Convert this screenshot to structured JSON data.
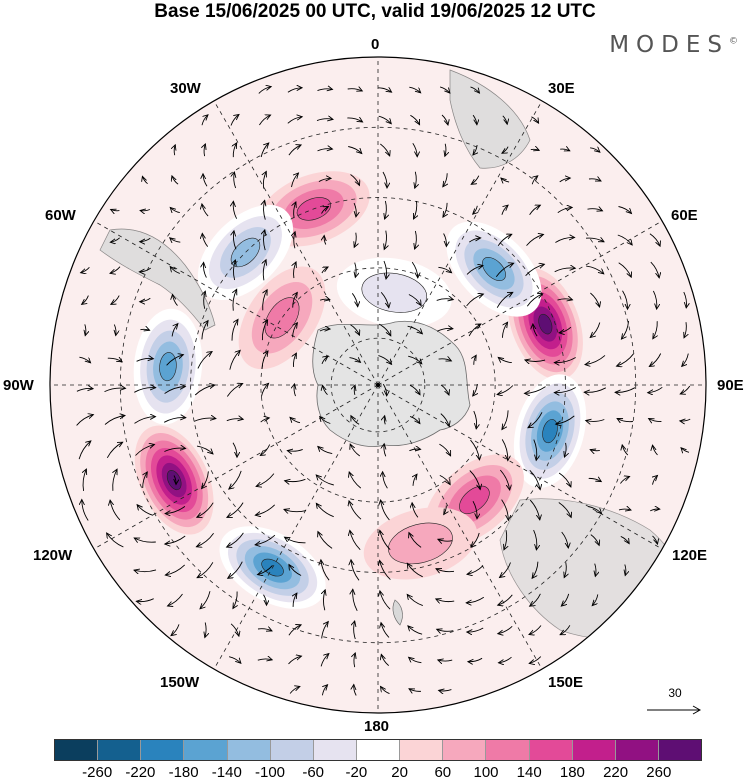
{
  "title": "Base 15/06/2025 00 UTC, valid 19/06/2025 12 UTC",
  "brand": "MODES",
  "brand_mark": "©",
  "labels": {
    "lon_0": "0",
    "lon_30E": "30E",
    "lon_60E": "60E",
    "lon_90E": "90E",
    "lon_120E": "120E",
    "lon_150E": "150E",
    "lon_180": "180",
    "lon_150W": "150W",
    "lon_120W": "120W",
    "lon_90W": "90W",
    "lon_60W": "60W",
    "lon_30W": "30W"
  },
  "reference_vector": "30",
  "colorbar": {
    "colors": [
      "#0b3e5e",
      "#14608f",
      "#2a83bd",
      "#5ba3d2",
      "#93bde0",
      "#c3cfe7",
      "#e6e3f0",
      "#ffffff",
      "#fbd4d6",
      "#f6a8bd",
      "#ef7aa7",
      "#e34a98",
      "#c21f8c",
      "#911182",
      "#5e0e73"
    ],
    "ticks": [
      "-260",
      "-220",
      "-180",
      "-140",
      "-100",
      "-60",
      "-20",
      "20",
      "60",
      "100",
      "140",
      "180",
      "220",
      "260"
    ]
  },
  "anomalies": [
    {
      "lon": 70,
      "lat": -52,
      "value": 240
    },
    {
      "lon": 105,
      "lat": -52,
      "value": -190
    },
    {
      "lon": 45,
      "lat": -55,
      "value": -150
    },
    {
      "lon": 140,
      "lat": -58,
      "value": 120
    },
    {
      "lon": 165,
      "lat": -55,
      "value": 40
    },
    {
      "lon": -150,
      "lat": -45,
      "value": -190
    },
    {
      "lon": -115,
      "lat": -42,
      "value": 230
    },
    {
      "lon": -85,
      "lat": -45,
      "value": -140
    },
    {
      "lon": -20,
      "lat": -50,
      "value": 110
    },
    {
      "lon": -45,
      "lat": -50,
      "value": -110
    },
    {
      "lon": -55,
      "lat": -65,
      "value": 80
    },
    {
      "lon": 10,
      "lat": -70,
      "value": -40
    }
  ]
}
